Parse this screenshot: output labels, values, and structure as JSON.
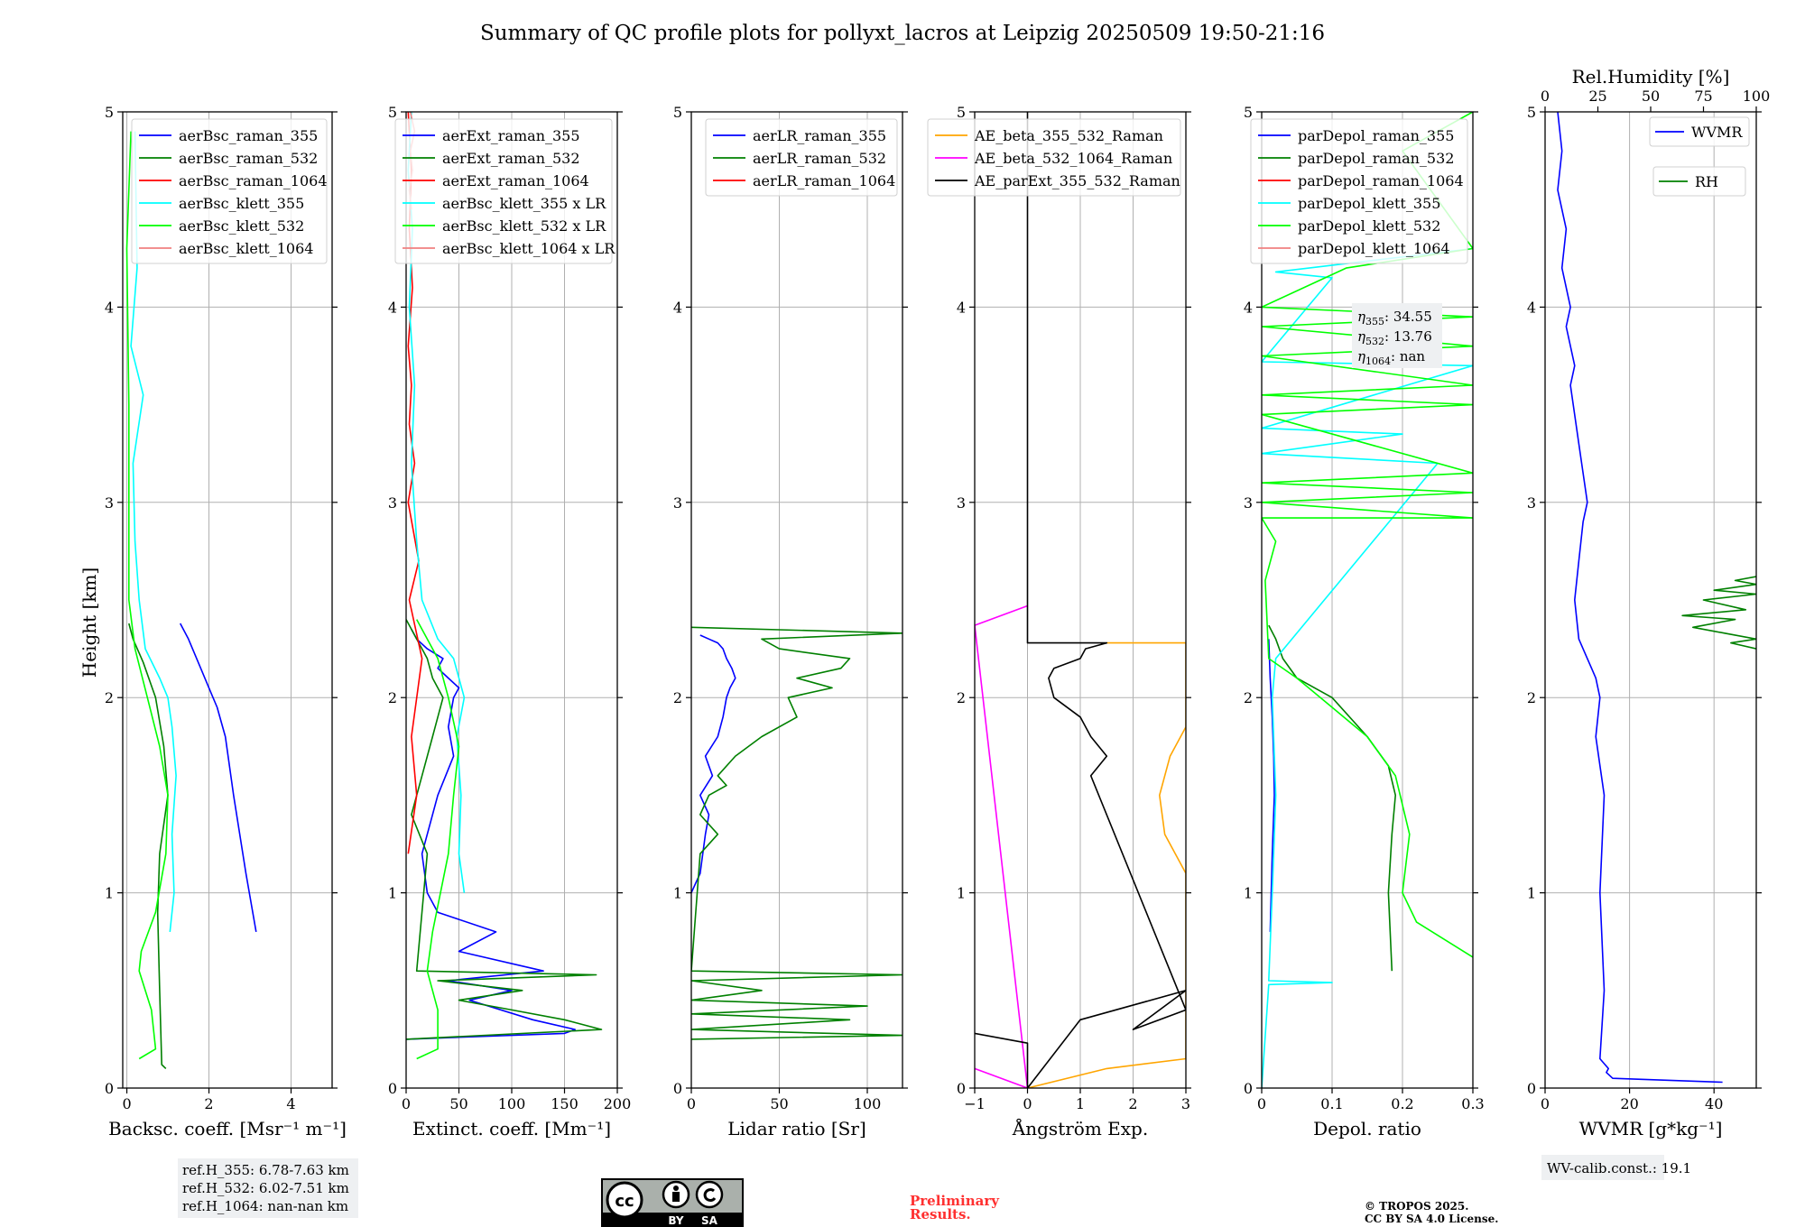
{
  "title": "Summary of QC profile plots for pollyxt_lacros at Leipzig 20250509 19:50-21:16",
  "ylabel": "Height [km]",
  "chart_data": [
    {
      "type": "line",
      "xlabel": "Backsc. coeff. [Msr⁻¹ m⁻¹]",
      "xlim": [
        -0.1,
        5.0
      ],
      "xticks": [
        0,
        2,
        4
      ],
      "ylim": [
        0,
        5
      ],
      "yticks": [
        0,
        1,
        2,
        3,
        4,
        5
      ],
      "grid": true,
      "legend": "top-right",
      "series": [
        {
          "name": "aerBsc_raman_355",
          "color": "#0000ff",
          "x": [
            3.15,
            2.9,
            2.6,
            2.4,
            2.2,
            2.0,
            1.8,
            1.5,
            1.3
          ],
          "y": [
            0.8,
            1.1,
            1.5,
            1.8,
            1.95,
            2.05,
            2.15,
            2.3,
            2.38
          ]
        },
        {
          "name": "aerBsc_raman_532",
          "color": "#008000",
          "x": [
            0.95,
            0.85,
            0.8,
            0.75,
            0.8,
            1.0,
            0.9,
            0.7,
            0.4,
            0.15,
            0.05
          ],
          "y": [
            0.1,
            0.12,
            0.5,
            0.9,
            1.2,
            1.5,
            1.75,
            2.0,
            2.18,
            2.3,
            2.38
          ]
        },
        {
          "name": "aerBsc_raman_1064",
          "color": "#ff0000",
          "x": [],
          "y": []
        },
        {
          "name": "aerBsc_klett_355",
          "color": "#00ffff",
          "x": [
            1.05,
            1.15,
            1.1,
            1.2,
            1.1,
            1.0,
            0.8,
            0.45,
            0.3,
            0.2,
            0.15,
            0.4,
            0.1,
            0.25,
            0.2
          ],
          "y": [
            0.8,
            1.0,
            1.3,
            1.6,
            1.85,
            2.0,
            2.1,
            2.25,
            2.5,
            2.8,
            3.2,
            3.55,
            3.8,
            4.2,
            4.9
          ]
        },
        {
          "name": "aerBsc_klett_532",
          "color": "#00ff00",
          "x": [
            0.3,
            0.7,
            0.6,
            0.3,
            0.35,
            0.7,
            0.95,
            1.0,
            0.8,
            0.5,
            0.2,
            0.05,
            0.05,
            0.0,
            0.1
          ],
          "y": [
            0.15,
            0.2,
            0.4,
            0.6,
            0.7,
            0.9,
            1.2,
            1.5,
            1.75,
            2.0,
            2.25,
            2.5,
            3.5,
            4.3,
            4.9
          ]
        },
        {
          "name": "aerBsc_klett_1064",
          "color": "#f08080",
          "x": [],
          "y": []
        }
      ]
    },
    {
      "type": "line",
      "xlabel": "Extinct. coeff. [Mm⁻¹]",
      "xlim": [
        0,
        200
      ],
      "xticks": [
        0,
        50,
        100,
        150,
        200
      ],
      "ylim": [
        0,
        5
      ],
      "yticks": [
        0,
        1,
        2,
        3,
        4,
        5
      ],
      "grid": true,
      "legend": "top-right",
      "series": [
        {
          "name": "aerExt_raman_355",
          "color": "#0000ff",
          "x": [
            0,
            150,
            160,
            120,
            60,
            100,
            40,
            130,
            50,
            85,
            30,
            20,
            15,
            30,
            45,
            40,
            45,
            50,
            40,
            30,
            35,
            20,
            10,
            5
          ],
          "y": [
            0.25,
            0.28,
            0.3,
            0.35,
            0.45,
            0.5,
            0.55,
            0.6,
            0.7,
            0.8,
            0.9,
            1.0,
            1.2,
            1.5,
            1.7,
            1.85,
            2.0,
            2.05,
            2.1,
            2.15,
            2.2,
            2.25,
            2.3,
            2.35
          ]
        },
        {
          "name": "aerExt_raman_532",
          "color": "#008000",
          "x": [
            0,
            185,
            150,
            100,
            50,
            110,
            30,
            180,
            10,
            20,
            5,
            15,
            25,
            30,
            35,
            25,
            20,
            10,
            5,
            0
          ],
          "y": [
            0.25,
            0.3,
            0.35,
            0.4,
            0.45,
            0.5,
            0.55,
            0.58,
            0.6,
            1.2,
            1.4,
            1.6,
            1.8,
            1.9,
            2.0,
            2.1,
            2.2,
            2.3,
            2.35,
            2.4
          ]
        },
        {
          "name": "aerExt_raman_1064",
          "color": "#ff0000",
          "x": [
            2,
            10,
            5,
            15,
            3,
            12,
            2,
            8,
            3,
            5,
            2,
            6,
            3,
            5,
            2
          ],
          "y": [
            1.2,
            1.5,
            1.8,
            2.2,
            2.5,
            2.7,
            3.0,
            3.2,
            3.4,
            3.6,
            3.8,
            4.1,
            4.4,
            4.7,
            5.0
          ]
        },
        {
          "name": "aerBsc_klett_355 x LR",
          "color": "#00ffff",
          "x": [
            55,
            50,
            52,
            48,
            55,
            50,
            45,
            30,
            15,
            10,
            5,
            8,
            3,
            6,
            2,
            5
          ],
          "y": [
            1.0,
            1.2,
            1.5,
            1.8,
            2.0,
            2.1,
            2.2,
            2.3,
            2.5,
            2.8,
            3.2,
            3.6,
            4.0,
            4.4,
            4.7,
            5.0
          ]
        },
        {
          "name": "aerBsc_klett_532 x LR",
          "color": "#00ff00",
          "x": [
            10,
            30,
            30,
            20,
            25,
            40,
            45,
            50,
            40,
            30,
            10
          ],
          "y": [
            0.15,
            0.2,
            0.4,
            0.6,
            0.8,
            1.2,
            1.5,
            1.75,
            2.0,
            2.2,
            2.4
          ]
        },
        {
          "name": "aerBsc_klett_1064 x LR",
          "color": "#f08080",
          "x": [
            5,
            3,
            6,
            4,
            8,
            4
          ],
          "y": [
            4.5,
            4.6,
            4.7,
            4.8,
            4.9,
            5.0
          ]
        }
      ]
    },
    {
      "type": "line",
      "xlabel": "Lidar ratio [Sr]",
      "xlim": [
        0,
        120
      ],
      "xticks": [
        0,
        50,
        100
      ],
      "ylim": [
        0,
        5
      ],
      "yticks": [
        0,
        1,
        2,
        3,
        4,
        5
      ],
      "grid": true,
      "legend": "top-right",
      "series": [
        {
          "name": "aerLR_raman_355",
          "color": "#0000ff",
          "x": [
            0,
            5,
            8,
            10,
            5,
            12,
            8,
            15,
            18,
            20,
            22,
            25,
            23,
            20,
            18,
            15,
            10,
            5
          ],
          "y": [
            1.0,
            1.1,
            1.3,
            1.4,
            1.5,
            1.6,
            1.7,
            1.8,
            1.9,
            2.0,
            2.05,
            2.1,
            2.15,
            2.2,
            2.25,
            2.28,
            2.3,
            2.32
          ]
        },
        {
          "name": "aerLR_raman_532",
          "color": "#008000",
          "x": [
            0,
            120,
            0,
            90,
            0,
            100,
            0,
            40,
            0,
            120,
            0,
            5,
            15,
            5,
            10,
            20,
            15,
            25,
            40,
            60,
            55,
            80,
            60,
            85,
            90,
            50,
            40,
            120,
            0
          ],
          "y": [
            0.25,
            0.27,
            0.3,
            0.35,
            0.38,
            0.42,
            0.45,
            0.5,
            0.55,
            0.58,
            0.6,
            1.2,
            1.3,
            1.4,
            1.5,
            1.55,
            1.6,
            1.7,
            1.8,
            1.9,
            2.0,
            2.05,
            2.1,
            2.15,
            2.2,
            2.25,
            2.3,
            2.33,
            2.36
          ]
        },
        {
          "name": "aerLR_raman_1064",
          "color": "#ff0000",
          "x": [],
          "y": []
        }
      ]
    },
    {
      "type": "line",
      "xlabel": "Ångström Exp.",
      "xlim": [
        -1,
        3
      ],
      "xticks": [
        -1,
        0,
        1,
        2,
        3
      ],
      "ylim": [
        0,
        5
      ],
      "yticks": [
        0,
        1,
        2,
        3,
        4,
        5
      ],
      "grid": true,
      "legend": "top-right",
      "series": [
        {
          "name": "AE_beta_355_532_Raman",
          "color": "#ffa500",
          "x": [
            0,
            1.5,
            3.0,
            3.0,
            2.6,
            2.5,
            2.7,
            3.0,
            3.0,
            1.5
          ],
          "y": [
            0,
            0.1,
            0.15,
            1.1,
            1.3,
            1.5,
            1.7,
            1.85,
            2.28,
            2.28
          ]
        },
        {
          "name": "AE_beta_532_1064_Raman",
          "color": "#ff00ff",
          "x": [
            -1,
            0,
            -1,
            0
          ],
          "y": [
            0.1,
            0,
            2.37,
            2.47
          ]
        },
        {
          "name": "AE_parExt_355_532_Raman",
          "color": "#000000",
          "x": [
            -1,
            0,
            0,
            1.0,
            3.0,
            2.0,
            3.0,
            1.2,
            1.5,
            1.2,
            1.0,
            0.5,
            0.4,
            0.5,
            1.0,
            1.1,
            1.5,
            0,
            0
          ],
          "y": [
            0.28,
            0.23,
            0.0,
            0.35,
            0.5,
            0.3,
            0.4,
            1.6,
            1.7,
            1.8,
            1.9,
            2.0,
            2.1,
            2.15,
            2.2,
            2.25,
            2.28,
            2.28,
            5.0
          ]
        }
      ]
    },
    {
      "type": "line",
      "xlabel": "Depol. ratio",
      "xlim": [
        0,
        0.3
      ],
      "xticks": [
        0.0,
        0.1,
        0.2,
        0.3
      ],
      "ylim": [
        0,
        5
      ],
      "yticks": [
        0,
        1,
        2,
        3,
        4,
        5
      ],
      "grid": true,
      "legend": "top-right",
      "series": [
        {
          "name": "parDepol_raman_355",
          "color": "#0000ff",
          "x": [
            0.012,
            0.015,
            0.018,
            0.017,
            0.015,
            0.012,
            0.01
          ],
          "y": [
            0.8,
            1.2,
            1.5,
            1.7,
            1.9,
            2.1,
            2.3
          ]
        },
        {
          "name": "parDepol_raman_532",
          "color": "#008000",
          "x": [
            0.185,
            0.18,
            0.185,
            0.19,
            0.18,
            0.15,
            0.1,
            0.05,
            0.03,
            0.02,
            0.01
          ],
          "y": [
            0.6,
            1.0,
            1.3,
            1.5,
            1.65,
            1.8,
            2.0,
            2.1,
            2.2,
            2.3,
            2.37
          ]
        },
        {
          "name": "parDepol_raman_1064",
          "color": "#ff0000",
          "x": [],
          "y": []
        },
        {
          "name": "parDepol_klett_355",
          "color": "#00ffff",
          "x": [
            0.0,
            0.01,
            0.1,
            0.01,
            0.015,
            0.02,
            0.015,
            0.02,
            0.25,
            0.0,
            0.2,
            0.0,
            0.3,
            0.0,
            0.1,
            0.02,
            0.3
          ],
          "y": [
            0.0,
            0.53,
            0.54,
            0.55,
            1.0,
            1.5,
            2.0,
            2.2,
            3.2,
            3.25,
            3.35,
            3.38,
            3.7,
            3.72,
            4.15,
            4.18,
            4.3
          ]
        },
        {
          "name": "parDepol_klett_532",
          "color": "#00ff00",
          "x": [
            0.3,
            0.22,
            0.2,
            0.21,
            0.19,
            0.15,
            0.1,
            0.05,
            0.01,
            0.005,
            0.02,
            0.0,
            0.3,
            0.0,
            0.3,
            0.0,
            0.3,
            0.0,
            0.3,
            0.0,
            0.3,
            0.0,
            0.3,
            0.0,
            0.3,
            0.0,
            0.12,
            0.3,
            0.2,
            0.3
          ],
          "y": [
            0.67,
            0.85,
            1.0,
            1.3,
            1.6,
            1.8,
            1.95,
            2.1,
            2.2,
            2.6,
            2.8,
            2.92,
            2.92,
            3.0,
            3.05,
            3.1,
            3.15,
            3.45,
            3.5,
            3.55,
            3.6,
            3.75,
            3.8,
            3.9,
            3.95,
            4.0,
            4.2,
            4.3,
            4.8,
            5.0
          ]
        },
        {
          "name": "parDepol_klett_1064",
          "color": "#f08080",
          "x": [],
          "y": []
        }
      ],
      "annotations": [
        {
          "symbol": "η",
          "sub": "355",
          "value": ": 34.55"
        },
        {
          "symbol": "η",
          "sub": "532",
          "value": ": 13.76"
        },
        {
          "symbol": "η",
          "sub": "1064",
          "value": ": nan"
        }
      ]
    },
    {
      "type": "line",
      "xlabel": "WVMR [g*kg⁻¹]",
      "xlim": [
        0,
        50
      ],
      "xticks": [
        0,
        20,
        40
      ],
      "x2label": "Rel.Humidity [%]",
      "x2lim": [
        0,
        100
      ],
      "x2ticks": [
        0,
        25,
        50,
        75,
        100
      ],
      "ylim": [
        0,
        5
      ],
      "yticks": [
        0,
        1,
        2,
        3,
        4,
        5
      ],
      "grid": true,
      "legend": "top-right",
      "series": [
        {
          "name": "WVMR",
          "color": "#0000ff",
          "axis": "bottom",
          "x": [
            42,
            16,
            14.5,
            15,
            13,
            14,
            13,
            14,
            12,
            13,
            12,
            11,
            10,
            8,
            7,
            8,
            9,
            10,
            8,
            6,
            7,
            5,
            6,
            4,
            5,
            3,
            4,
            3
          ],
          "y": [
            0.03,
            0.05,
            0.08,
            0.1,
            0.15,
            0.5,
            1.0,
            1.5,
            1.8,
            2.0,
            2.1,
            2.15,
            2.2,
            2.3,
            2.5,
            2.7,
            2.9,
            3.0,
            3.3,
            3.6,
            3.7,
            3.9,
            4.0,
            4.2,
            4.4,
            4.6,
            4.8,
            5.0
          ]
        },
        {
          "name": "RH",
          "color": "#008000",
          "axis": "top",
          "x": [
            100,
            88,
            100,
            85,
            70,
            90,
            65,
            95,
            75,
            100,
            80,
            100,
            90,
            100
          ],
          "y": [
            2.25,
            2.28,
            2.3,
            2.33,
            2.36,
            2.4,
            2.42,
            2.45,
            2.5,
            2.53,
            2.55,
            2.58,
            2.6,
            2.62
          ]
        }
      ],
      "annotations": [
        {
          "text": "WV-calib.const.: 19.1"
        }
      ]
    }
  ],
  "notes": {
    "refH": [
      "ref.H_355: 6.78-7.63 km",
      "ref.H_532: 6.02-7.51 km",
      "ref.H_1064: nan-nan km"
    ],
    "preliminary": [
      "Preliminary",
      "Results."
    ],
    "copyright": [
      "© TROPOS 2025.",
      "CC BY SA 4.0 License."
    ]
  },
  "license_badge": {
    "cc": "cc",
    "by": "BY",
    "sa": "SA"
  }
}
